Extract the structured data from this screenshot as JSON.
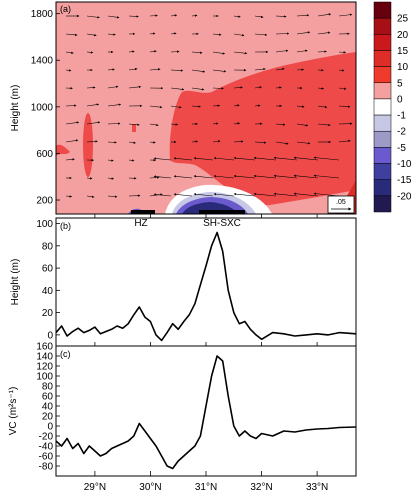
{
  "chart_data": [
    {
      "panel": "(a)",
      "type": "heatmap",
      "ylabel": "Height (m)",
      "ylim": [
        80,
        1900
      ],
      "yticks": [
        200,
        600,
        1000,
        1400,
        1800
      ],
      "xlim": [
        28.3,
        33.7
      ],
      "colorbar": {
        "levels": [
          "25",
          "20",
          "15",
          "10",
          "5",
          "0",
          "-1",
          "-2",
          "-5",
          "-10",
          "-15",
          "-20"
        ],
        "colors": [
          "#67000d",
          "#a50f15",
          "#cb181d",
          "#de2d26",
          "#ef3b2c",
          "#f4a0a0",
          "#ffffff",
          "#c6c8e6",
          "#9e9ac8",
          "#6a5acd",
          "#3f3f9f",
          "#2a2a7a",
          "#201a50"
        ]
      },
      "background_value": "0 to 5",
      "features": [
        {
          "label": "HZ",
          "x_range": [
            29.8,
            30.1
          ]
        },
        {
          "label": "SH-SXC",
          "x_range": [
            30.9,
            31.6
          ]
        }
      ],
      "vector_reference": ".05"
    },
    {
      "panel": "(b)",
      "type": "line",
      "ylabel": "Height (m)",
      "ylim": [
        -10,
        105
      ],
      "yticks": [
        0,
        20,
        40,
        60,
        80,
        100
      ],
      "xlim": [
        28.3,
        33.7
      ],
      "x": [
        28.3,
        28.4,
        28.5,
        28.6,
        28.7,
        28.8,
        28.9,
        29.0,
        29.1,
        29.2,
        29.3,
        29.4,
        29.5,
        29.6,
        29.7,
        29.8,
        29.9,
        30.0,
        30.1,
        30.2,
        30.3,
        30.4,
        30.5,
        30.6,
        30.7,
        30.8,
        30.9,
        31.0,
        31.1,
        31.2,
        31.3,
        31.4,
        31.5,
        31.6,
        31.7,
        31.8,
        31.9,
        32.0,
        32.2,
        32.4,
        32.6,
        32.8,
        33.0,
        33.2,
        33.4,
        33.7
      ],
      "y": [
        2,
        8,
        -1,
        3,
        6,
        2,
        4,
        7,
        1,
        3,
        5,
        8,
        6,
        10,
        18,
        25,
        16,
        12,
        0,
        -5,
        2,
        10,
        5,
        12,
        18,
        28,
        45,
        62,
        80,
        92,
        75,
        40,
        20,
        10,
        12,
        5,
        0,
        -4,
        2,
        1,
        -1,
        0,
        1,
        0,
        2,
        1
      ]
    },
    {
      "panel": "(c)",
      "type": "line",
      "ylabel": "VC (m²s⁻¹)",
      "ylim": [
        -100,
        160
      ],
      "yticks": [
        -80,
        -60,
        -40,
        -20,
        0,
        20,
        40,
        60,
        80,
        100,
        120,
        140,
        160
      ],
      "xlim": [
        28.3,
        33.7
      ],
      "xticks": [
        "29°N",
        "30°N",
        "31°N",
        "32°N",
        "33°N"
      ],
      "x": [
        28.3,
        28.4,
        28.5,
        28.6,
        28.7,
        28.8,
        28.9,
        29.0,
        29.1,
        29.2,
        29.3,
        29.4,
        29.5,
        29.6,
        29.7,
        29.8,
        29.9,
        30.0,
        30.1,
        30.2,
        30.3,
        30.4,
        30.5,
        30.6,
        30.7,
        30.8,
        30.9,
        31.0,
        31.1,
        31.2,
        31.3,
        31.4,
        31.5,
        31.6,
        31.7,
        31.8,
        31.9,
        32.0,
        32.2,
        32.4,
        32.6,
        32.8,
        33.0,
        33.2,
        33.4,
        33.7
      ],
      "y": [
        -30,
        -40,
        -25,
        -45,
        -35,
        -55,
        -40,
        -50,
        -60,
        -55,
        -45,
        -40,
        -35,
        -30,
        -20,
        5,
        -10,
        -25,
        -40,
        -60,
        -80,
        -85,
        -70,
        -60,
        -50,
        -40,
        -20,
        40,
        100,
        140,
        130,
        60,
        0,
        -20,
        -10,
        -20,
        -25,
        -15,
        -20,
        -10,
        -12,
        -8,
        -6,
        -5,
        -3,
        -2
      ]
    }
  ]
}
